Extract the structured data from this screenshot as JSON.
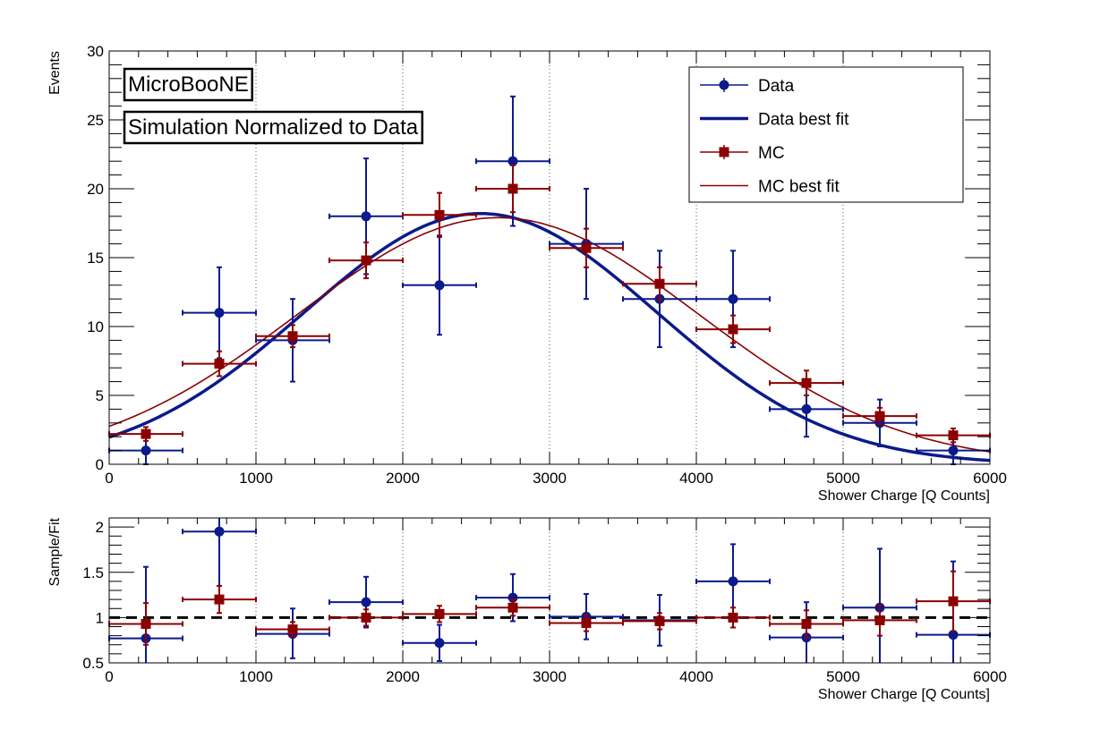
{
  "chart_data": [
    {
      "type": "scatter",
      "panel": "main",
      "xlabel": "Shower Charge [Q Counts]",
      "ylabel": "Events",
      "xlim": [
        0,
        6000
      ],
      "ylim": [
        0,
        30
      ],
      "xticks": [
        0,
        1000,
        2000,
        3000,
        4000,
        5000,
        6000
      ],
      "yticks": [
        0,
        5,
        10,
        15,
        20,
        25,
        30
      ],
      "grid": "vertical dotted",
      "annotations": [
        "MicroBooNE",
        "Simulation Normalized to Data"
      ],
      "legend": {
        "placement": "top-right",
        "entries": [
          {
            "label": "Data",
            "style": "marker-circle",
            "color": "#0b1a8c"
          },
          {
            "label": "Data best fit",
            "style": "line-thick",
            "color": "#0b1a8c"
          },
          {
            "label": "MC",
            "style": "marker-square",
            "color": "#8b0000"
          },
          {
            "label": "MC best fit",
            "style": "line-thin",
            "color": "#8b0000"
          }
        ]
      },
      "bin_half_width": 250,
      "series": [
        {
          "name": "Data",
          "color": "#0b1a8c",
          "marker": "circle",
          "x": [
            250,
            750,
            1250,
            1750,
            2250,
            2750,
            3250,
            3750,
            4250,
            4750,
            5250,
            5750
          ],
          "values": [
            1,
            11,
            9,
            18,
            13,
            22,
            16,
            12,
            12,
            4,
            3,
            1
          ],
          "yerr_low": [
            1,
            3.3,
            3,
            4.2,
            3.6,
            4.7,
            4,
            3.5,
            3.5,
            2,
            1.7,
            1
          ],
          "yerr_high": [
            1,
            3.3,
            3,
            4.2,
            3.6,
            4.7,
            4,
            3.5,
            3.5,
            2,
            1.7,
            1
          ]
        },
        {
          "name": "MC",
          "color": "#8b0000",
          "marker": "square",
          "x": [
            250,
            750,
            1250,
            1750,
            2250,
            2750,
            3250,
            3750,
            4250,
            4750,
            5250,
            5750
          ],
          "values": [
            2.2,
            7.3,
            9.3,
            14.8,
            18.1,
            20,
            15.7,
            13.1,
            9.8,
            5.9,
            3.5,
            2.1
          ],
          "yerr_low": [
            0.5,
            0.9,
            0.8,
            1.3,
            1.6,
            1.7,
            1.4,
            1.2,
            1.0,
            0.9,
            0.6,
            0.5
          ],
          "yerr_high": [
            0.5,
            0.9,
            0.8,
            1.3,
            1.6,
            1.7,
            1.4,
            1.2,
            1.0,
            0.9,
            0.6,
            0.5
          ]
        }
      ],
      "fits": [
        {
          "name": "Data best fit",
          "color": "#0b1a8c",
          "function": "gaussian",
          "amplitude": 18.2,
          "mean": 2530,
          "sigma": 1200
        },
        {
          "name": "MC best fit",
          "color": "#8b0000",
          "function": "gaussian",
          "amplitude": 17.9,
          "mean": 2650,
          "sigma": 1370
        }
      ]
    },
    {
      "type": "scatter",
      "panel": "ratio",
      "xlabel": "Shower Charge [Q Counts]",
      "ylabel": "Sample/Fit",
      "xlim": [
        0,
        6000
      ],
      "ylim": [
        0.5,
        2.1
      ],
      "xticks": [
        0,
        1000,
        2000,
        3000,
        4000,
        5000,
        6000
      ],
      "yticks": [
        0.5,
        1,
        1.5,
        2
      ],
      "ytick_labels": [
        "0.5",
        "1",
        "1.5",
        "2"
      ],
      "grid": "vertical dotted",
      "reference_line": 1,
      "bin_half_width": 250,
      "series": [
        {
          "name": "Data",
          "color": "#0b1a8c",
          "marker": "circle",
          "x": [
            250,
            750,
            1250,
            1750,
            2250,
            2750,
            3250,
            3750,
            4250,
            4750,
            5250,
            5750
          ],
          "values": [
            0.77,
            1.95,
            0.82,
            1.17,
            0.72,
            1.22,
            1.01,
            0.97,
            1.4,
            0.78,
            1.11,
            0.81
          ],
          "yerr_low": [
            0.77,
            0.6,
            0.27,
            0.28,
            0.2,
            0.26,
            0.25,
            0.28,
            0.41,
            0.39,
            0.65,
            0.81
          ],
          "yerr_high": [
            0.79,
            0.6,
            0.28,
            0.28,
            0.2,
            0.26,
            0.25,
            0.28,
            0.41,
            0.39,
            0.65,
            0.81
          ]
        },
        {
          "name": "MC",
          "color": "#8b0000",
          "marker": "square",
          "x": [
            250,
            750,
            1250,
            1750,
            2250,
            2750,
            3250,
            3750,
            4250,
            4750,
            5250,
            5750
          ],
          "values": [
            0.93,
            1.2,
            0.87,
            1.0,
            1.04,
            1.11,
            0.94,
            0.96,
            1.0,
            0.93,
            0.97,
            1.18
          ],
          "yerr_low": [
            0.23,
            0.15,
            0.08,
            0.09,
            0.09,
            0.09,
            0.09,
            0.09,
            0.11,
            0.15,
            0.17,
            0.33
          ],
          "yerr_high": [
            0.23,
            0.15,
            0.08,
            0.09,
            0.09,
            0.09,
            0.09,
            0.09,
            0.11,
            0.15,
            0.17,
            0.33
          ]
        }
      ]
    }
  ]
}
